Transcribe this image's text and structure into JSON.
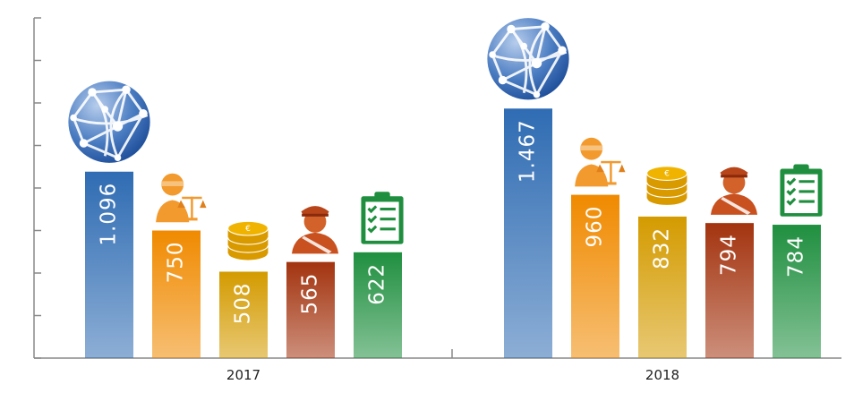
{
  "chart_data": {
    "type": "bar",
    "categories": [
      "2017",
      "2018"
    ],
    "series": [
      {
        "color": "#2f6cb3",
        "values": [
          1096,
          1467
        ],
        "value_labels": [
          "1.096",
          "1.467"
        ]
      },
      {
        "color": "#f08a00",
        "values": [
          750,
          960
        ]
      },
      {
        "color": "#d49b00",
        "values": [
          508,
          832
        ]
      },
      {
        "color": "#a3330f",
        "values": [
          565,
          794
        ]
      },
      {
        "color": "#1f8f3f",
        "values": [
          622,
          784
        ]
      }
    ],
    "ylim": [
      0,
      2000
    ],
    "yticks": [
      0,
      250,
      500,
      750,
      1000,
      1250,
      1500,
      1750,
      2000
    ]
  }
}
